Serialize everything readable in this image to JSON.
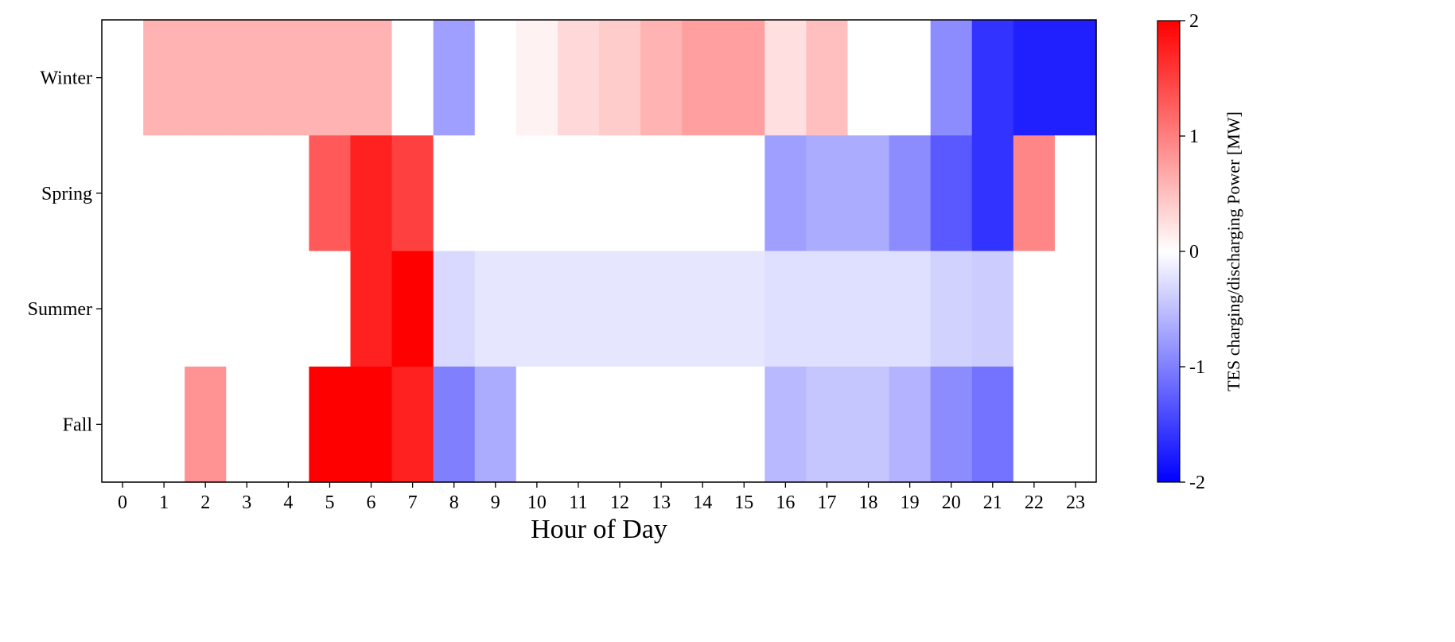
{
  "chart_data": {
    "type": "heatmap",
    "title": "",
    "xlabel": "Hour of Day",
    "ylabel": "",
    "colorbar_label": "TES charging/discharging Power [MW]",
    "colorbar_ticks": [
      "2",
      "1",
      "0",
      "-1",
      "-2"
    ],
    "color_range": [
      -2,
      2
    ],
    "colormap": {
      "low": "#0000ff",
      "mid": "#ffffff",
      "high": "#ff0000"
    },
    "x_categories": [
      "0",
      "1",
      "2",
      "3",
      "4",
      "5",
      "6",
      "7",
      "8",
      "9",
      "10",
      "11",
      "12",
      "13",
      "14",
      "15",
      "16",
      "17",
      "18",
      "19",
      "20",
      "21",
      "22",
      "23"
    ],
    "y_categories": [
      "Winter",
      "Spring",
      "Summer",
      "Fall"
    ],
    "values": [
      [
        0,
        0.6,
        0.6,
        0.6,
        0.6,
        0.6,
        0.6,
        0,
        -0.75,
        0,
        0.1,
        0.3,
        0.4,
        0.6,
        0.75,
        0.75,
        0.25,
        0.5,
        0,
        0,
        -0.9,
        -1.6,
        -1.75,
        -1.75
      ],
      [
        0,
        0,
        0,
        0,
        0,
        1.3,
        1.75,
        1.5,
        0,
        0,
        0,
        0,
        0,
        0,
        0,
        0,
        -0.75,
        -0.65,
        -0.65,
        -0.9,
        -1.3,
        -1.6,
        0.95,
        0
      ],
      [
        0,
        0,
        0,
        0,
        0,
        0,
        1.75,
        2.0,
        -0.3,
        -0.2,
        -0.2,
        -0.2,
        -0.2,
        -0.2,
        -0.2,
        -0.2,
        -0.25,
        -0.25,
        -0.25,
        -0.25,
        -0.35,
        -0.4,
        0,
        0
      ],
      [
        0,
        0,
        0.85,
        0,
        0,
        2.0,
        2.0,
        1.75,
        -1.0,
        -0.65,
        0,
        0,
        0,
        0,
        0,
        0,
        -0.55,
        -0.45,
        -0.45,
        -0.6,
        -0.9,
        -1.1,
        0,
        0
      ]
    ]
  }
}
